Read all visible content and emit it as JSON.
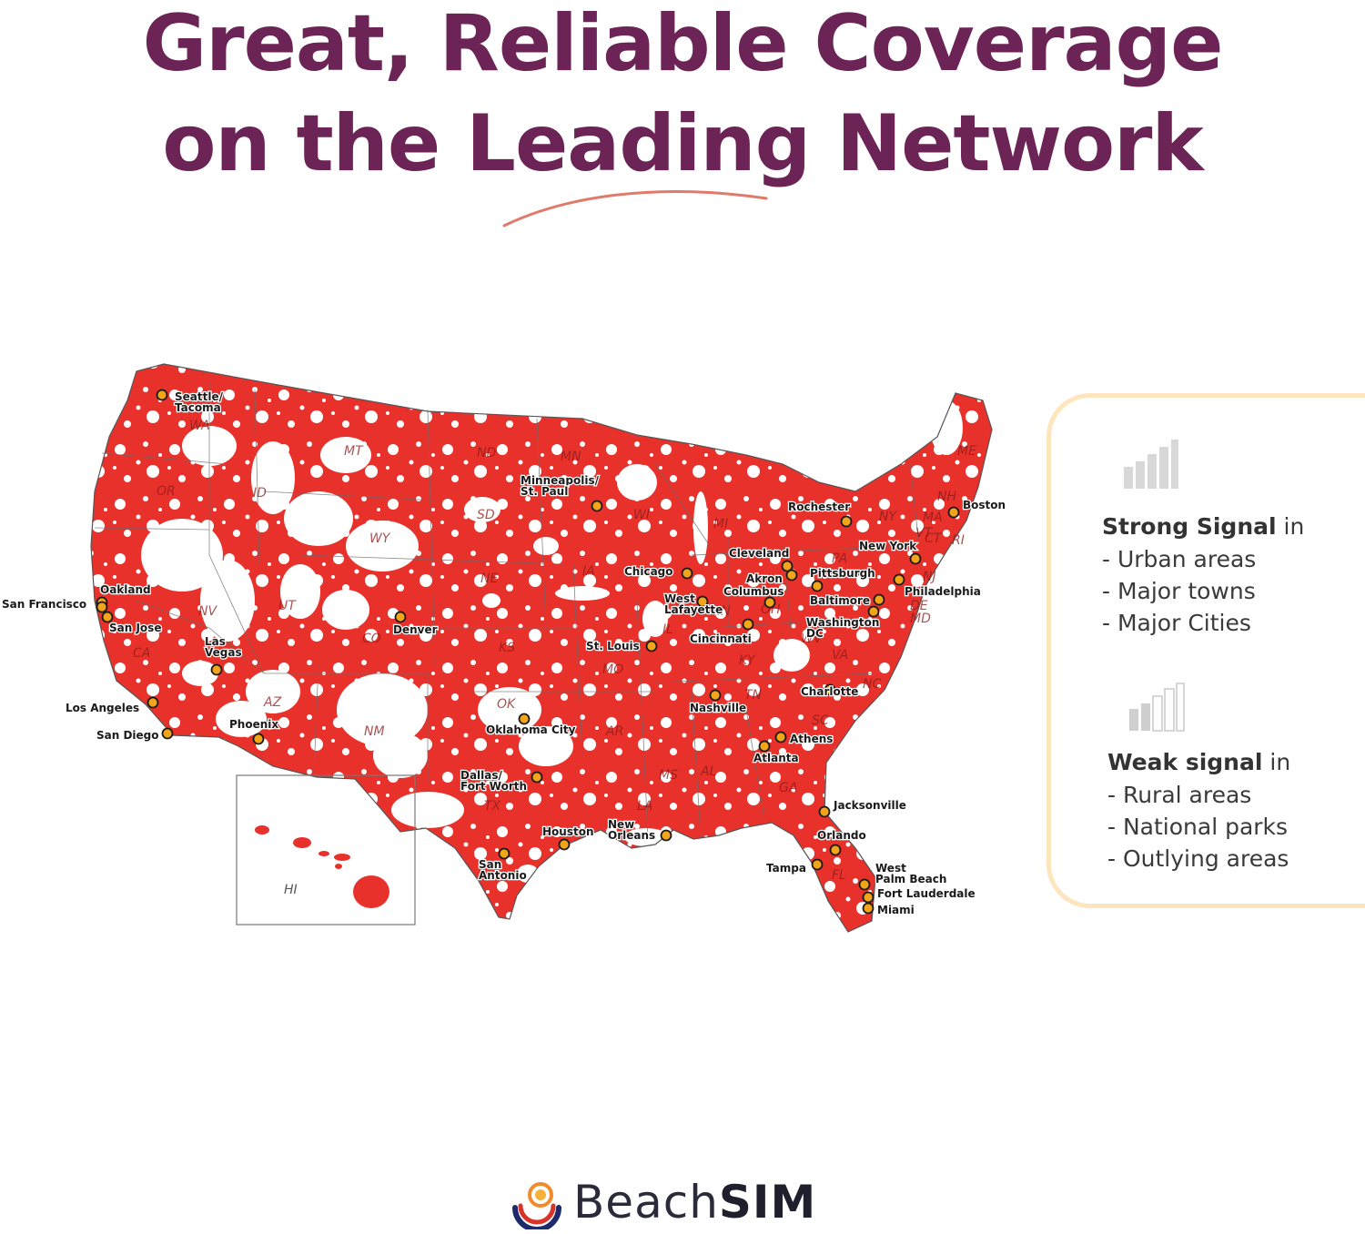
{
  "headline": {
    "line1": "Great, Reliable Coverage",
    "line2": "on the Leading Network"
  },
  "colors": {
    "headline": "#6b2455",
    "swoosh": "#e07a6a",
    "coverage": "#e8312b",
    "legend_border": "#fde5bd",
    "city_dot": "#f2a51a"
  },
  "map": {
    "cities": [
      {
        "id": "seattle",
        "label": "Seattle/",
        "label2": "Tacoma"
      },
      {
        "id": "minneapolis",
        "label": "Minneapolis/",
        "label2": "St. Paul"
      },
      {
        "id": "rochester",
        "label": "Rochester"
      },
      {
        "id": "boston",
        "label": "Boston"
      },
      {
        "id": "cleveland",
        "label": "Cleveland"
      },
      {
        "id": "new-york",
        "label": "New York"
      },
      {
        "id": "chicago",
        "label": "Chicago"
      },
      {
        "id": "akron",
        "label": "Akron"
      },
      {
        "id": "pittsburgh",
        "label": "Pittsburgh"
      },
      {
        "id": "philadelphia",
        "label": "Philadelphia"
      },
      {
        "id": "columbus",
        "label": "Columbus"
      },
      {
        "id": "baltimore",
        "label": "Baltimore"
      },
      {
        "id": "west-lafayette",
        "label": "West",
        "label2": "Lafayette"
      },
      {
        "id": "washington",
        "label": "Washington",
        "label2": "DC"
      },
      {
        "id": "oakland",
        "label": "Oakland"
      },
      {
        "id": "san-francisco",
        "label": "San Francisco"
      },
      {
        "id": "san-jose",
        "label": "San Jose"
      },
      {
        "id": "denver",
        "label": "Denver"
      },
      {
        "id": "las-vegas",
        "label": "Las",
        "label2": "Vegas"
      },
      {
        "id": "cincinnati",
        "label": "Cincinnati"
      },
      {
        "id": "st-louis",
        "label": "St. Louis"
      },
      {
        "id": "charlotte",
        "label": "Charlotte"
      },
      {
        "id": "nashville",
        "label": "Nashville"
      },
      {
        "id": "los-angeles",
        "label": "Los Angeles"
      },
      {
        "id": "phoenix",
        "label": "Phoenix"
      },
      {
        "id": "oklahoma-city",
        "label": "Oklahoma City"
      },
      {
        "id": "san-diego",
        "label": "San Diego"
      },
      {
        "id": "athens",
        "label": "Athens"
      },
      {
        "id": "atlanta",
        "label": "Atlanta"
      },
      {
        "id": "dallas",
        "label": "Dallas/",
        "label2": "Fort Worth"
      },
      {
        "id": "jacksonville",
        "label": "Jacksonville"
      },
      {
        "id": "houston",
        "label": "Houston"
      },
      {
        "id": "new-orleans",
        "label": "New",
        "label2": "Orleans"
      },
      {
        "id": "orlando",
        "label": "Orlando"
      },
      {
        "id": "san-antonio",
        "label": "San",
        "label2": "Antonio"
      },
      {
        "id": "tampa",
        "label": "Tampa"
      },
      {
        "id": "west-palm-beach",
        "label": "West",
        "label2": "Palm Beach"
      },
      {
        "id": "fort-lauderdale",
        "label": "Fort Lauderdale"
      },
      {
        "id": "miami",
        "label": "Miami"
      }
    ],
    "states": [
      "WA",
      "OR",
      "ID",
      "MT",
      "ND",
      "MN",
      "WI",
      "MI",
      "SD",
      "WY",
      "NE",
      "IA",
      "NV",
      "UT",
      "CO",
      "KS",
      "CA",
      "MO",
      "IL",
      "IN",
      "OH",
      "KY",
      "WV",
      "VA",
      "TN",
      "NC",
      "SC",
      "AZ",
      "NM",
      "OK",
      "AR",
      "MS",
      "AL",
      "GA",
      "TX",
      "FL",
      "LA",
      "NY",
      "ME",
      "VT",
      "NH",
      "MA",
      "RI",
      "CT",
      "NJ",
      "DE",
      "MD",
      "PA",
      "HI"
    ]
  },
  "legend": {
    "strong": {
      "title_bold": "Strong Signal",
      "title_rest": " in",
      "items": [
        "- Urban areas",
        "- Major towns",
        "- Major Cities"
      ]
    },
    "weak": {
      "title_bold": "Weak signal",
      "title_rest": " in",
      "items": [
        "- Rural areas",
        "- National parks",
        "- Outlying areas"
      ]
    }
  },
  "brand": {
    "name_light": "Beach",
    "name_bold": "SIM"
  }
}
